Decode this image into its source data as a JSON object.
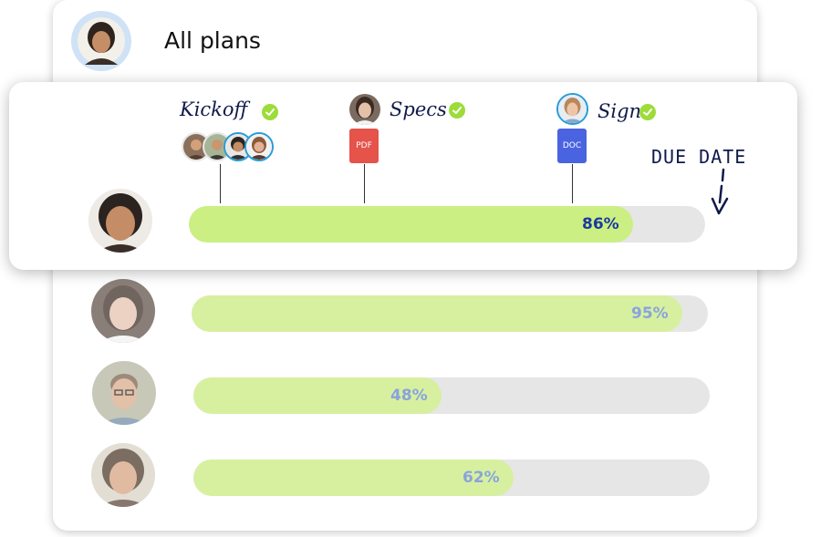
{
  "header": {
    "title": "All plans",
    "avatar": "person-avatar"
  },
  "milestones": [
    {
      "label": "Kickoff",
      "status_icon": "check-circle-icon",
      "attachment": "team-avatars"
    },
    {
      "label": "Specs",
      "status_icon": "check-circle-icon",
      "attachment": "PDF"
    },
    {
      "label": "Sign",
      "status_icon": "check-circle-icon",
      "attachment": "DOC"
    }
  ],
  "due_date_label": "DUE DATE",
  "colors": {
    "fill_active": "#cbef83",
    "fill_faded": "#d6f0a0",
    "track": "#e6e6e6",
    "check": "#9ddc3a",
    "pdf": "#e5534b",
    "doc": "#4a63e0",
    "percent_active": "#1b3a9e",
    "percent_faded": "#8aa3dc"
  },
  "plans": [
    {
      "progress": 86,
      "label": "86%"
    },
    {
      "progress": 95,
      "label": "95%"
    },
    {
      "progress": 48,
      "label": "48%"
    },
    {
      "progress": 62,
      "label": "62%"
    }
  ]
}
